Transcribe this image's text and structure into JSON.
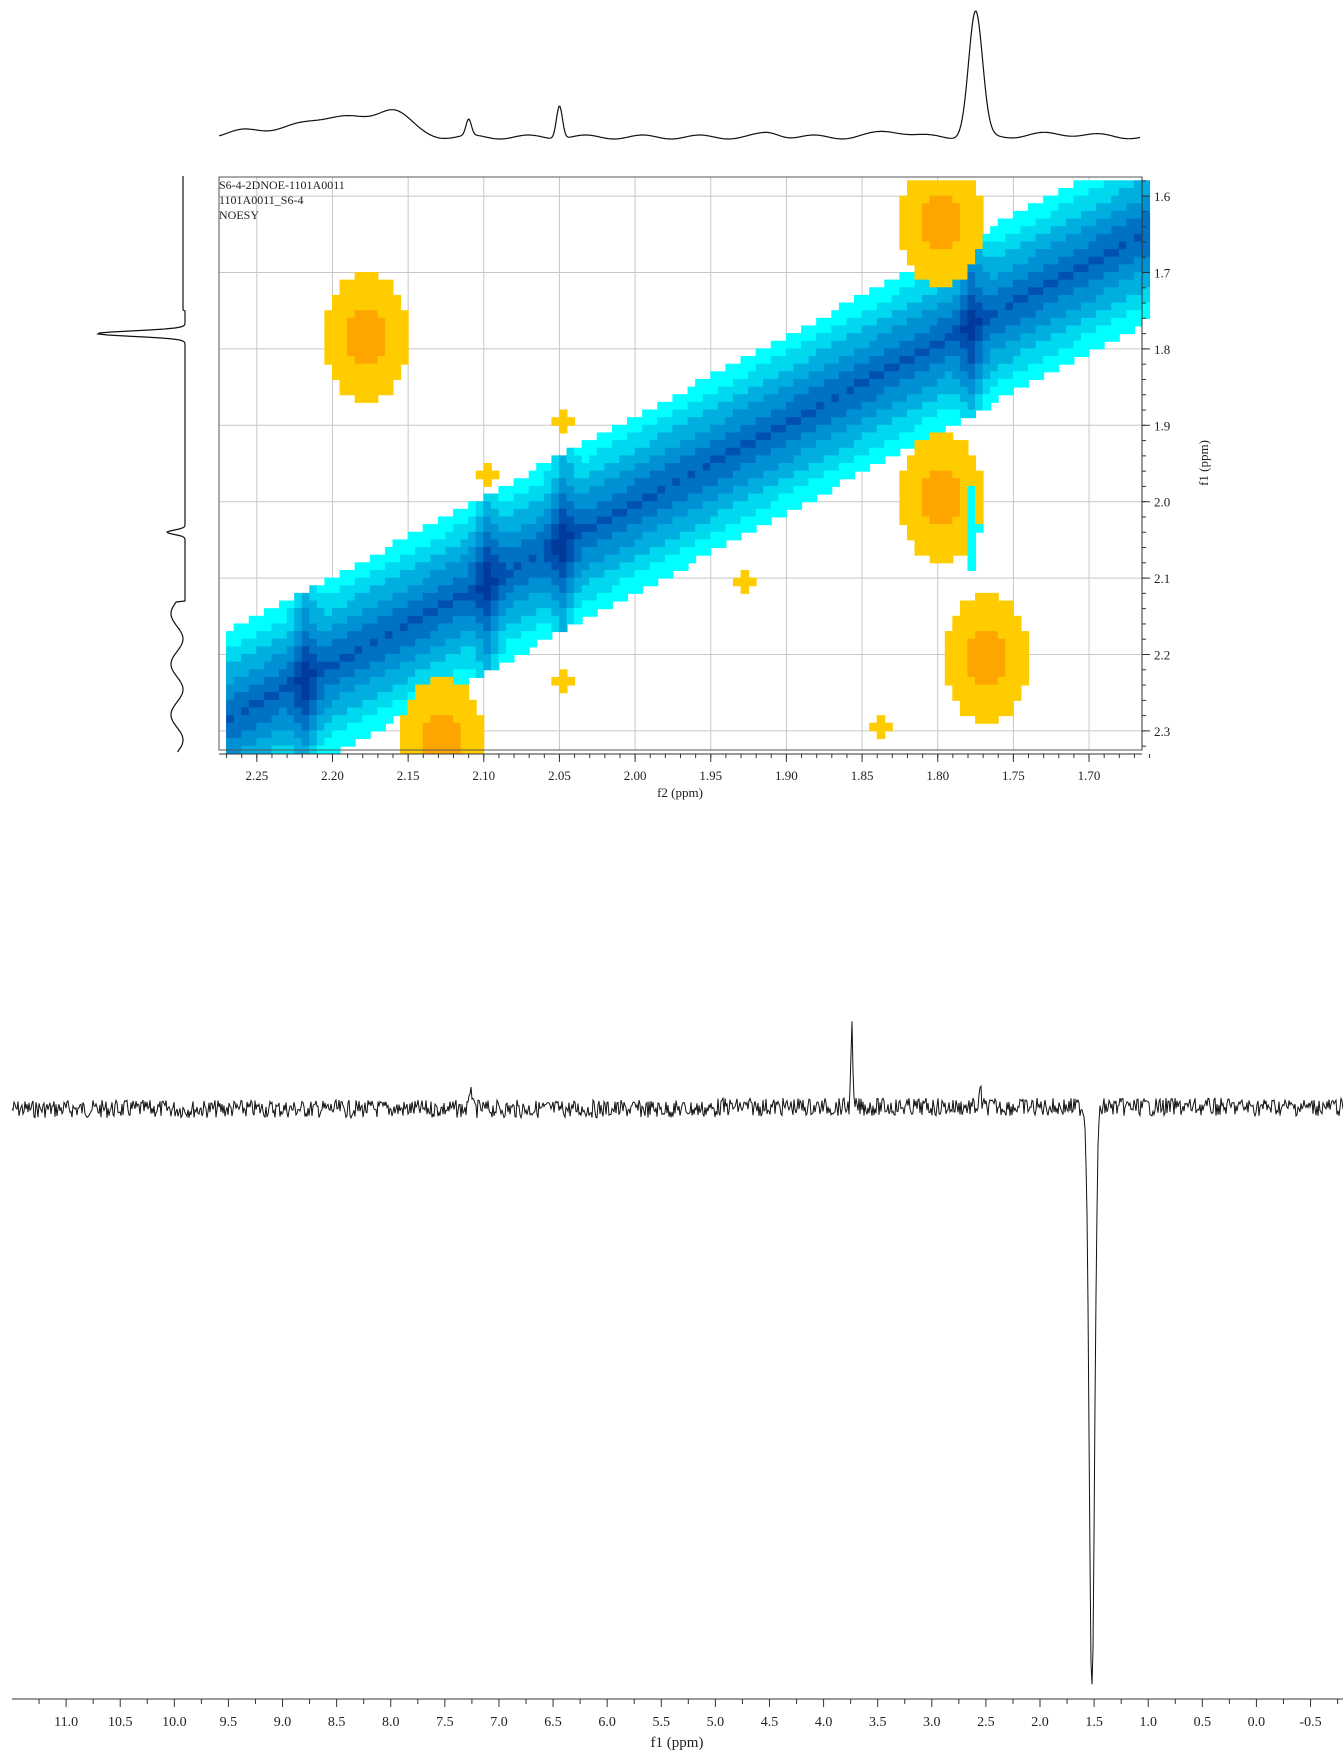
{
  "chart_data": [
    {
      "type": "heatmap",
      "subtype": "2D NMR contour (NOESY) with projections",
      "header_lines": [
        "S6-4-2DNOE-1101A0011",
        "1101A0011_S6-4",
        "NOESY"
      ],
      "xlabel": "f2 (ppm)",
      "ylabel": "f1 (ppm)",
      "xlim": [
        2.275,
        1.665
      ],
      "ylim": [
        1.575,
        2.325
      ],
      "x_ticks": [
        "2.25",
        "2.20",
        "2.15",
        "2.10",
        "2.05",
        "2.00",
        "1.95",
        "1.90",
        "1.85",
        "1.80",
        "1.75",
        "1.70"
      ],
      "y_ticks": [
        "1.6",
        "1.7",
        "1.8",
        "1.9",
        "2.0",
        "2.1",
        "2.2",
        "2.3"
      ],
      "grid": true,
      "colors": {
        "positive_levels": [
          "#00ffff",
          "#00d8f0",
          "#00aee0",
          "#0091d5",
          "#0072c4",
          "#0050b0",
          "#003a9a"
        ],
        "negative_levels": [
          "#ffcc00",
          "#ffa500"
        ]
      },
      "diagonal": {
        "from": [
          2.27,
          2.28
        ],
        "to": [
          1.67,
          1.65
        ],
        "intense_bands_f2": [
          2.22,
          2.1,
          2.05,
          1.78
        ]
      },
      "cross_peaks": [
        {
          "f2": 2.18,
          "f1": 1.78,
          "sign": "negative",
          "level": 2
        },
        {
          "f2": 1.77,
          "f1": 2.2,
          "sign": "negative",
          "level": 2
        },
        {
          "f2": 1.84,
          "f1": 2.29,
          "sign": "negative",
          "level": 1
        },
        {
          "f2": 2.13,
          "f1": 2.31,
          "sign": "negative",
          "level": 2
        },
        {
          "f2": 1.8,
          "f1": 1.99,
          "sign": "negative",
          "level": 2
        },
        {
          "f2": 1.8,
          "f1": 1.63,
          "sign": "negative",
          "level": 2
        },
        {
          "f2": 2.1,
          "f1": 1.96,
          "sign": "negative",
          "level": 1
        },
        {
          "f2": 2.05,
          "f1": 1.89,
          "sign": "negative",
          "level": 1
        },
        {
          "f2": 2.05,
          "f1": 2.23,
          "sign": "negative",
          "level": 1
        },
        {
          "f2": 1.93,
          "f1": 2.1,
          "sign": "negative",
          "level": 1
        },
        {
          "f2": 1.78,
          "f1": 2.03,
          "sign": "positive",
          "level": 1
        }
      ],
      "top_projection_peaks_f2": [
        2.11,
        2.05,
        1.775
      ],
      "left_projection_peaks_f1": [
        1.78,
        2.04
      ]
    },
    {
      "type": "line",
      "subtype": "1D NMR spectrum (selective NOE)",
      "xlabel": "f1 (ppm)",
      "xlim": [
        11.5,
        -0.8
      ],
      "x_ticks": [
        "11.0",
        "10.5",
        "10.0",
        "9.5",
        "9.0",
        "8.5",
        "8.0",
        "7.5",
        "7.0",
        "6.5",
        "6.0",
        "5.5",
        "5.0",
        "4.5",
        "4.0",
        "3.5",
        "3.0",
        "2.5",
        "2.0",
        "1.5",
        "1.0",
        "0.5",
        "0.0",
        "-0.5"
      ],
      "peaks": [
        {
          "ppm": 7.26,
          "direction": "up",
          "relative_height": 0.05
        },
        {
          "ppm": 3.74,
          "direction": "up",
          "relative_height": 0.14
        },
        {
          "ppm": 2.55,
          "direction": "up",
          "relative_height": 0.03
        },
        {
          "ppm": 1.52,
          "direction": "down",
          "relative_height": 1.0
        }
      ],
      "baseline_noise": true
    }
  ]
}
